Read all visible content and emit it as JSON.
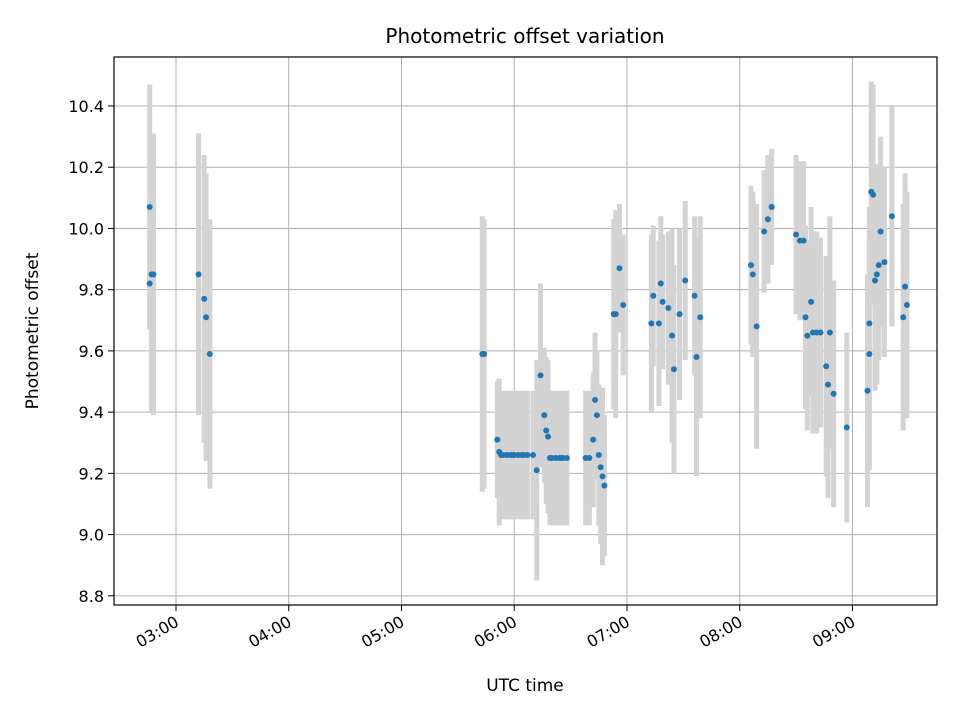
{
  "chart_data": {
    "type": "scatter",
    "title": "Photometric offset variation",
    "xlabel": "UTC time",
    "ylabel": "Photometric offset",
    "grid": true,
    "x_ticks": [
      "03:00",
      "04:00",
      "05:00",
      "06:00",
      "07:00",
      "08:00",
      "09:00"
    ],
    "y_ticks": [
      8.8,
      9.0,
      9.2,
      9.4,
      9.6,
      9.8,
      10.0,
      10.2,
      10.4
    ],
    "xlim": [
      "02:27",
      "09:45"
    ],
    "ylim": [
      8.77,
      10.56
    ],
    "marker_color": "#1f77b4",
    "errorbar_color": "#d3d3d3",
    "points": [
      {
        "x": "02:46",
        "y": 10.07,
        "e": 0.4
      },
      {
        "x": "02:46",
        "y": 9.82,
        "e": 0.15
      },
      {
        "x": "02:47",
        "y": 9.85,
        "e": 0.45
      },
      {
        "x": "02:48",
        "y": 9.85,
        "e": 0.46
      },
      {
        "x": "03:12",
        "y": 9.85,
        "e": 0.46
      },
      {
        "x": "03:15",
        "y": 9.77,
        "e": 0.47
      },
      {
        "x": "03:16",
        "y": 9.71,
        "e": 0.47
      },
      {
        "x": "03:18",
        "y": 9.59,
        "e": 0.44
      },
      {
        "x": "05:43",
        "y": 9.59,
        "e": 0.45
      },
      {
        "x": "05:44",
        "y": 9.59,
        "e": 0.44
      },
      {
        "x": "05:51",
        "y": 9.31,
        "e": 0.19
      },
      {
        "x": "05:52",
        "y": 9.27,
        "e": 0.24
      },
      {
        "x": "05:53",
        "y": 9.26,
        "e": 0.21
      },
      {
        "x": "05:54",
        "y": 9.26,
        "e": 0.21
      },
      {
        "x": "05:56",
        "y": 9.26,
        "e": 0.21
      },
      {
        "x": "05:58",
        "y": 9.26,
        "e": 0.21
      },
      {
        "x": "05:59",
        "y": 9.26,
        "e": 0.21
      },
      {
        "x": "06:00",
        "y": 9.26,
        "e": 0.21
      },
      {
        "x": "06:02",
        "y": 9.26,
        "e": 0.21
      },
      {
        "x": "06:04",
        "y": 9.26,
        "e": 0.21
      },
      {
        "x": "06:05",
        "y": 9.26,
        "e": 0.21
      },
      {
        "x": "06:07",
        "y": 9.26,
        "e": 0.21
      },
      {
        "x": "06:10",
        "y": 9.26,
        "e": 0.21
      },
      {
        "x": "06:12",
        "y": 9.21,
        "e": 0.36
      },
      {
        "x": "06:14",
        "y": 9.52,
        "e": 0.3
      },
      {
        "x": "06:16",
        "y": 9.39,
        "e": 0.22
      },
      {
        "x": "06:17",
        "y": 9.34,
        "e": 0.24
      },
      {
        "x": "06:18",
        "y": 9.32,
        "e": 0.25
      },
      {
        "x": "06:19",
        "y": 9.25,
        "e": 0.22
      },
      {
        "x": "06:20",
        "y": 9.25,
        "e": 0.22
      },
      {
        "x": "06:22",
        "y": 9.25,
        "e": 0.22
      },
      {
        "x": "06:24",
        "y": 9.25,
        "e": 0.22
      },
      {
        "x": "06:25",
        "y": 9.25,
        "e": 0.22
      },
      {
        "x": "06:26",
        "y": 9.25,
        "e": 0.22
      },
      {
        "x": "06:28",
        "y": 9.25,
        "e": 0.22
      },
      {
        "x": "06:38",
        "y": 9.25,
        "e": 0.22
      },
      {
        "x": "06:40",
        "y": 9.25,
        "e": 0.22
      },
      {
        "x": "06:42",
        "y": 9.31,
        "e": 0.22
      },
      {
        "x": "06:43",
        "y": 9.44,
        "e": 0.22
      },
      {
        "x": "06:44",
        "y": 9.39,
        "e": 0.21
      },
      {
        "x": "06:45",
        "y": 9.26,
        "e": 0.23
      },
      {
        "x": "06:46",
        "y": 9.22,
        "e": 0.25
      },
      {
        "x": "06:47",
        "y": 9.19,
        "e": 0.29
      },
      {
        "x": "06:48",
        "y": 9.16,
        "e": 0.23
      },
      {
        "x": "06:53",
        "y": 9.72,
        "e": 0.31
      },
      {
        "x": "06:54",
        "y": 9.72,
        "e": 0.34
      },
      {
        "x": "06:56",
        "y": 9.87,
        "e": 0.21
      },
      {
        "x": "06:58",
        "y": 9.75,
        "e": 0.23
      },
      {
        "x": "07:13",
        "y": 9.69,
        "e": 0.29
      },
      {
        "x": "07:14",
        "y": 9.78,
        "e": 0.23
      },
      {
        "x": "07:17",
        "y": 9.69,
        "e": 0.27
      },
      {
        "x": "07:18",
        "y": 9.82,
        "e": 0.22
      },
      {
        "x": "07:19",
        "y": 9.76,
        "e": 0.22
      },
      {
        "x": "07:22",
        "y": 9.74,
        "e": 0.25
      },
      {
        "x": "07:24",
        "y": 9.65,
        "e": 0.35
      },
      {
        "x": "07:25",
        "y": 9.54,
        "e": 0.34
      },
      {
        "x": "07:28",
        "y": 9.72,
        "e": 0.28
      },
      {
        "x": "07:31",
        "y": 9.83,
        "e": 0.26
      },
      {
        "x": "07:36",
        "y": 9.78,
        "e": 0.26
      },
      {
        "x": "07:37",
        "y": 9.58,
        "e": 0.39
      },
      {
        "x": "07:39",
        "y": 9.71,
        "e": 0.33
      },
      {
        "x": "08:06",
        "y": 9.88,
        "e": 0.26
      },
      {
        "x": "08:07",
        "y": 9.85,
        "e": 0.27
      },
      {
        "x": "08:09",
        "y": 9.68,
        "e": 0.4
      },
      {
        "x": "08:13",
        "y": 9.99,
        "e": 0.2
      },
      {
        "x": "08:15",
        "y": 10.03,
        "e": 0.21
      },
      {
        "x": "08:17",
        "y": 10.07,
        "e": 0.19
      },
      {
        "x": "08:30",
        "y": 9.98,
        "e": 0.26
      },
      {
        "x": "08:32",
        "y": 9.96,
        "e": 0.26
      },
      {
        "x": "08:34",
        "y": 9.96,
        "e": 0.26
      },
      {
        "x": "08:35",
        "y": 9.71,
        "e": 0.3
      },
      {
        "x": "08:36",
        "y": 9.65,
        "e": 0.31
      },
      {
        "x": "08:38",
        "y": 9.76,
        "e": 0.31
      },
      {
        "x": "08:39",
        "y": 9.66,
        "e": 0.33
      },
      {
        "x": "08:41",
        "y": 9.66,
        "e": 0.33
      },
      {
        "x": "08:43",
        "y": 9.66,
        "e": 0.31
      },
      {
        "x": "08:46",
        "y": 9.55,
        "e": 0.36
      },
      {
        "x": "08:47",
        "y": 9.49,
        "e": 0.37
      },
      {
        "x": "08:48",
        "y": 9.66,
        "e": 0.38
      },
      {
        "x": "08:50",
        "y": 9.46,
        "e": 0.37
      },
      {
        "x": "08:57",
        "y": 9.35,
        "e": 0.31
      },
      {
        "x": "09:08",
        "y": 9.47,
        "e": 0.38
      },
      {
        "x": "09:09",
        "y": 9.59,
        "e": 0.38
      },
      {
        "x": "09:09",
        "y": 9.69,
        "e": 0.38
      },
      {
        "x": "09:10",
        "y": 10.12,
        "e": 0.36
      },
      {
        "x": "09:11",
        "y": 10.11,
        "e": 0.36
      },
      {
        "x": "09:12",
        "y": 9.83,
        "e": 0.36
      },
      {
        "x": "09:13",
        "y": 9.85,
        "e": 0.36
      },
      {
        "x": "09:14",
        "y": 9.88,
        "e": 0.31
      },
      {
        "x": "09:15",
        "y": 9.99,
        "e": 0.31
      },
      {
        "x": "09:17",
        "y": 9.89,
        "e": 0.31
      },
      {
        "x": "09:21",
        "y": 10.04,
        "e": 0.36
      },
      {
        "x": "09:27",
        "y": 9.71,
        "e": 0.37
      },
      {
        "x": "09:28",
        "y": 9.81,
        "e": 0.37
      },
      {
        "x": "09:29",
        "y": 9.75,
        "e": 0.37
      }
    ]
  }
}
